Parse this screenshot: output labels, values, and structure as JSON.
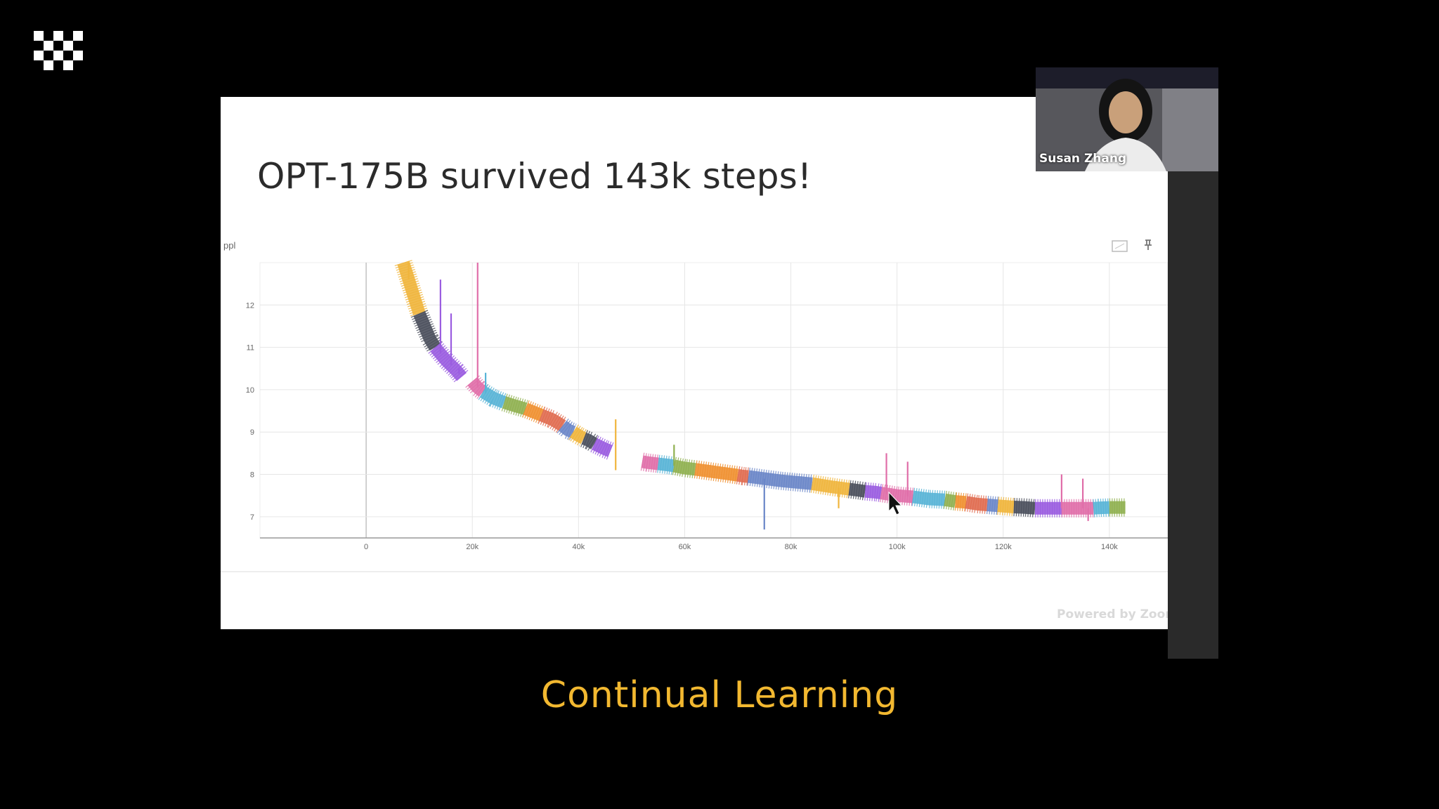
{
  "slide": {
    "title": "OPT-175B survived 143k steps!",
    "watermark": "Powered by Zoom"
  },
  "participant": {
    "name": "Susan Zhang"
  },
  "caption": "Continual Learning",
  "icons": {
    "logo": "checkerboard-logo-icon",
    "expand": "fullscreen-icon",
    "pin": "pin-icon",
    "cursor": "mouse-cursor-icon"
  },
  "colors": {
    "caption": "#f2b830",
    "segment_palette": [
      "#f0b53c",
      "#4a4f5c",
      "#9a5ce0",
      "#e06ea9",
      "#58b4d6",
      "#8fb050",
      "#f09030",
      "#e06c50",
      "#6a86c8"
    ]
  },
  "chart_data": {
    "type": "line",
    "ylabel": "ppl",
    "xlabel": "",
    "x_ticks": [
      0,
      20000,
      40000,
      60000,
      80000,
      100000,
      120000,
      140000
    ],
    "x_tick_labels": [
      "0",
      "20k",
      "40k",
      "60k",
      "80k",
      "100k",
      "120k",
      "140k"
    ],
    "y_ticks": [
      7,
      8,
      9,
      10,
      11,
      12
    ],
    "y_tick_labels": [
      "7",
      "8",
      "9",
      "10",
      "11",
      "12"
    ],
    "xlim": [
      -20000,
      151000
    ],
    "ylim": [
      6.5,
      13.0
    ],
    "grid": true,
    "series": [
      {
        "points": [
          [
            7000,
            13.0
          ],
          [
            8000,
            12.6
          ],
          [
            9000,
            12.2
          ],
          [
            10000,
            11.8
          ]
        ]
      },
      {
        "points": [
          [
            10000,
            11.8
          ],
          [
            11000,
            11.5
          ],
          [
            12000,
            11.2
          ],
          [
            13000,
            11.0
          ]
        ]
      },
      {
        "points": [
          [
            13000,
            11.0
          ],
          [
            15000,
            10.7
          ],
          [
            17000,
            10.45
          ],
          [
            18000,
            10.3
          ]
        ]
      },
      {
        "points": [
          [
            20000,
            10.2
          ],
          [
            21000,
            10.05
          ],
          [
            22000,
            9.95
          ]
        ]
      },
      {
        "points": [
          [
            22000,
            9.95
          ],
          [
            24000,
            9.8
          ],
          [
            26000,
            9.7
          ]
        ]
      },
      {
        "points": [
          [
            26000,
            9.7
          ],
          [
            28000,
            9.62
          ],
          [
            30000,
            9.55
          ]
        ]
      },
      {
        "points": [
          [
            30000,
            9.55
          ],
          [
            32000,
            9.45
          ],
          [
            33000,
            9.4
          ]
        ]
      },
      {
        "points": [
          [
            33000,
            9.4
          ],
          [
            35000,
            9.3
          ],
          [
            37000,
            9.15
          ]
        ]
      },
      {
        "points": [
          [
            37000,
            9.15
          ],
          [
            38000,
            9.05
          ],
          [
            39000,
            9.0
          ]
        ]
      },
      {
        "points": [
          [
            39000,
            9.0
          ],
          [
            40000,
            8.92
          ],
          [
            41000,
            8.85
          ]
        ]
      },
      {
        "points": [
          [
            41000,
            8.85
          ],
          [
            42000,
            8.8
          ],
          [
            43000,
            8.72
          ]
        ]
      },
      {
        "points": [
          [
            43000,
            8.72
          ],
          [
            45000,
            8.6
          ],
          [
            46000,
            8.55
          ]
        ]
      },
      {
        "points": [
          [
            52000,
            8.3
          ],
          [
            53000,
            8.28
          ],
          [
            55000,
            8.25
          ]
        ]
      },
      {
        "points": [
          [
            55000,
            8.25
          ],
          [
            57000,
            8.22
          ],
          [
            58000,
            8.2
          ]
        ]
      },
      {
        "points": [
          [
            58000,
            8.2
          ],
          [
            60000,
            8.15
          ],
          [
            62000,
            8.12
          ]
        ]
      },
      {
        "points": [
          [
            62000,
            8.12
          ],
          [
            66000,
            8.05
          ],
          [
            70000,
            7.98
          ]
        ]
      },
      {
        "points": [
          [
            70000,
            7.98
          ],
          [
            71000,
            7.96
          ],
          [
            72000,
            7.95
          ]
        ]
      },
      {
        "points": [
          [
            72000,
            7.95
          ],
          [
            78000,
            7.85
          ],
          [
            84000,
            7.78
          ]
        ]
      },
      {
        "points": [
          [
            84000,
            7.78
          ],
          [
            88000,
            7.7
          ],
          [
            91000,
            7.65
          ]
        ]
      },
      {
        "points": [
          [
            91000,
            7.65
          ],
          [
            93000,
            7.62
          ],
          [
            94000,
            7.6
          ]
        ]
      },
      {
        "points": [
          [
            94000,
            7.6
          ],
          [
            96000,
            7.58
          ],
          [
            97000,
            7.56
          ]
        ]
      },
      {
        "points": [
          [
            97000,
            7.56
          ],
          [
            100000,
            7.5
          ],
          [
            103000,
            7.47
          ]
        ]
      },
      {
        "points": [
          [
            103000,
            7.47
          ],
          [
            106000,
            7.42
          ],
          [
            109000,
            7.4
          ]
        ]
      },
      {
        "points": [
          [
            109000,
            7.4
          ],
          [
            110000,
            7.38
          ],
          [
            111000,
            7.36
          ]
        ]
      },
      {
        "points": [
          [
            111000,
            7.36
          ],
          [
            112000,
            7.35
          ],
          [
            113000,
            7.34
          ]
        ]
      },
      {
        "points": [
          [
            113000,
            7.34
          ],
          [
            115000,
            7.3
          ],
          [
            117000,
            7.28
          ]
        ]
      },
      {
        "points": [
          [
            117000,
            7.28
          ],
          [
            118000,
            7.27
          ],
          [
            119000,
            7.26
          ]
        ]
      },
      {
        "points": [
          [
            119000,
            7.26
          ],
          [
            120000,
            7.25
          ],
          [
            122000,
            7.23
          ]
        ]
      },
      {
        "points": [
          [
            122000,
            7.23
          ],
          [
            124000,
            7.22
          ],
          [
            126000,
            7.2
          ]
        ]
      },
      {
        "points": [
          [
            126000,
            7.2
          ],
          [
            128000,
            7.2
          ],
          [
            131000,
            7.2
          ]
        ]
      },
      {
        "points": [
          [
            131000,
            7.2
          ],
          [
            134000,
            7.2
          ],
          [
            137000,
            7.2
          ]
        ]
      },
      {
        "points": [
          [
            137000,
            7.2
          ],
          [
            138000,
            7.21
          ],
          [
            140000,
            7.22
          ]
        ]
      },
      {
        "points": [
          [
            140000,
            7.22
          ],
          [
            142000,
            7.22
          ],
          [
            143000,
            7.22
          ]
        ]
      }
    ],
    "spikes": [
      [
        8000,
        13.0
      ],
      [
        14000,
        12.6
      ],
      [
        16000,
        11.8
      ],
      [
        17500,
        10.5
      ],
      [
        21000,
        13.0
      ],
      [
        22500,
        10.4
      ],
      [
        47000,
        9.3
      ],
      [
        58000,
        8.7
      ],
      [
        75000,
        6.7
      ],
      [
        89000,
        7.2
      ],
      [
        98000,
        8.5
      ],
      [
        102000,
        8.3
      ],
      [
        131000,
        8.0
      ],
      [
        135000,
        7.9
      ],
      [
        136000,
        6.9
      ]
    ]
  }
}
